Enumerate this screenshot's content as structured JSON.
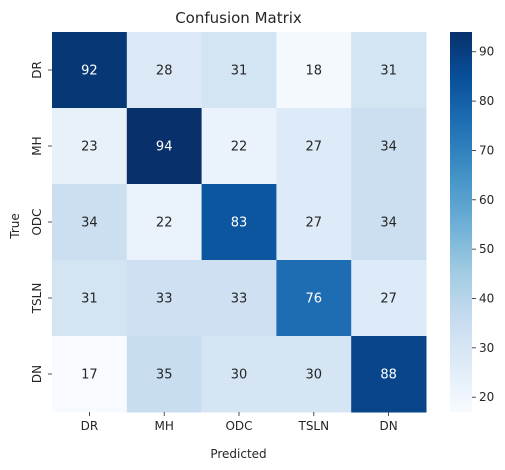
{
  "chart_data": {
    "type": "heatmap",
    "title": "Confusion Matrix",
    "xlabel": "Predicted",
    "ylabel": "True",
    "x_categories": [
      "DR",
      "MH",
      "ODC",
      "TSLN",
      "DN"
    ],
    "y_categories": [
      "DR",
      "MH",
      "ODC",
      "TSLN",
      "DN"
    ],
    "matrix": [
      [
        92,
        28,
        31,
        18,
        31
      ],
      [
        23,
        94,
        22,
        27,
        34
      ],
      [
        34,
        22,
        83,
        27,
        34
      ],
      [
        31,
        33,
        33,
        76,
        27
      ],
      [
        17,
        35,
        30,
        30,
        88
      ]
    ],
    "colormap": "Blues",
    "value_range": [
      17,
      94
    ],
    "colorbar_ticks": [
      "20",
      "30",
      "40",
      "50",
      "60",
      "70",
      "80",
      "90"
    ]
  }
}
